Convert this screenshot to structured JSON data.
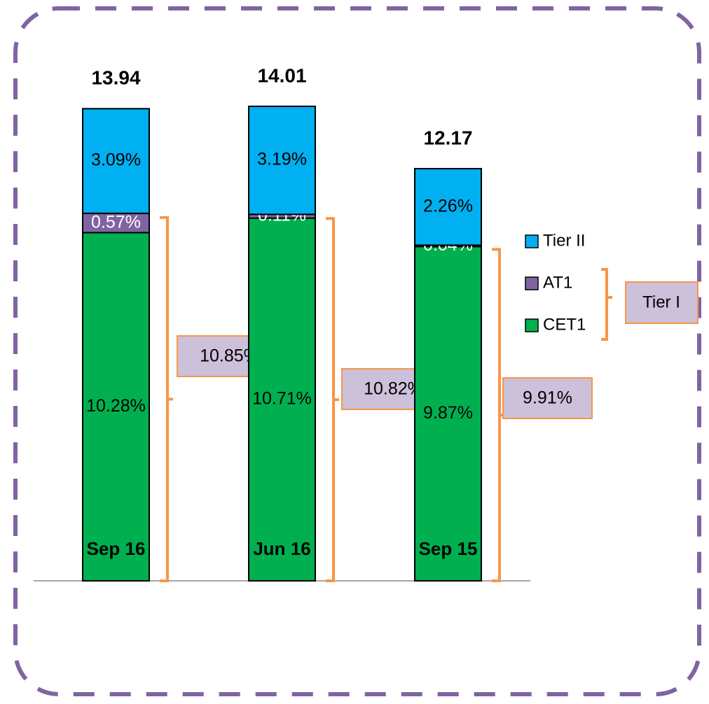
{
  "chart_data": {
    "type": "bar",
    "stacked": true,
    "categories": [
      "Sep 16",
      "Jun 16",
      "Sep 15"
    ],
    "series": [
      {
        "name": "CET1",
        "color": "#00b050",
        "values": [
          10.28,
          10.71,
          9.87
        ],
        "value_labels": [
          "10.28%",
          "10.71%",
          "9.87%"
        ]
      },
      {
        "name": "AT1",
        "color": "#8064a2",
        "values": [
          0.57,
          0.11,
          0.04
        ],
        "value_labels": [
          "0.57%",
          "0.11%",
          "0.04%"
        ]
      },
      {
        "name": "Tier II",
        "color": "#00b0f0",
        "values": [
          3.09,
          3.19,
          2.26
        ],
        "value_labels": [
          "3.09%",
          "3.19%",
          "2.26%"
        ]
      }
    ],
    "totals": [
      13.94,
      14.01,
      12.17
    ],
    "tier1": {
      "name": "Tier I",
      "values": [
        10.85,
        10.82,
        9.91
      ],
      "value_labels": [
        "10.85%",
        "10.82%",
        "9.91%"
      ]
    }
  }
}
